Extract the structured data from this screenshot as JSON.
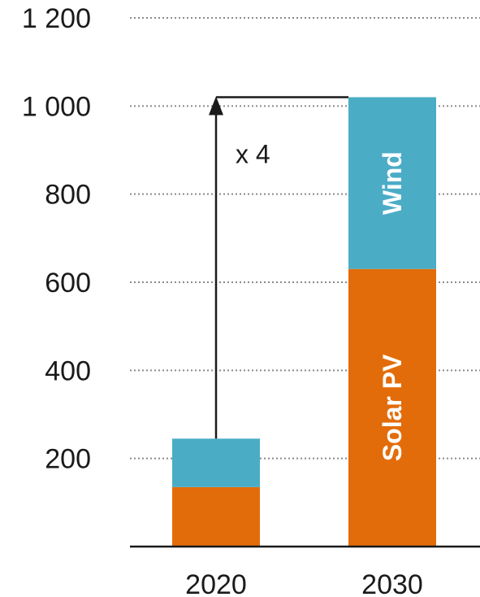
{
  "chart_data": {
    "type": "bar",
    "stacked": true,
    "categories": [
      "2020",
      "2030"
    ],
    "series": [
      {
        "name": "Solar PV",
        "values": [
          135,
          630
        ],
        "color": "#E36C0A"
      },
      {
        "name": "Wind",
        "values": [
          110,
          390
        ],
        "color": "#4BACC6"
      }
    ],
    "ylim": [
      0,
      1200
    ],
    "yticks": [
      200,
      400,
      600,
      800,
      1000,
      1200
    ],
    "ytick_labels": [
      "200",
      "400",
      "600",
      "800",
      "1 000",
      "1 200"
    ],
    "grid": true,
    "annotation": {
      "text": "x 4",
      "from": "2020",
      "to": "2030"
    }
  }
}
